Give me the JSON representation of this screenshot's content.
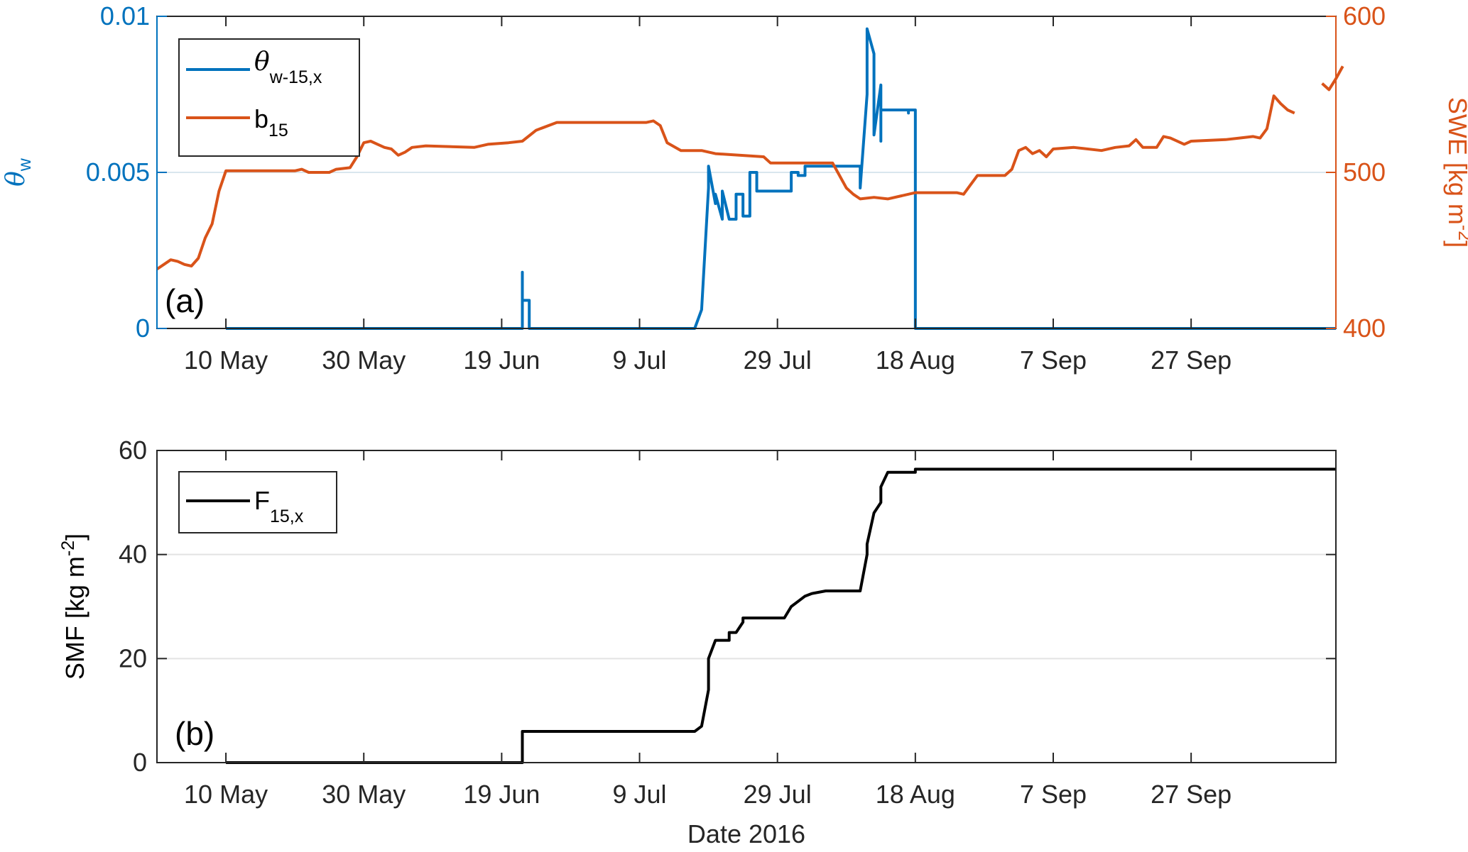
{
  "colors": {
    "theta": "#0072BD",
    "swe": "#D95319",
    "smf": "#000000",
    "grid": "#d9e6ee",
    "axis": "#262626"
  },
  "chart_data": [
    {
      "panel_label": "(a)",
      "type": "line",
      "x_axis": {
        "type": "date",
        "range": [
          "2016-04-30",
          "2016-10-18"
        ],
        "ticks": [
          {
            "date": "2016-05-10",
            "label": "10 May"
          },
          {
            "date": "2016-05-30",
            "label": "30 May"
          },
          {
            "date": "2016-06-19",
            "label": "19 Jun"
          },
          {
            "date": "2016-07-09",
            "label": "9 Jul"
          },
          {
            "date": "2016-07-29",
            "label": "29 Jul"
          },
          {
            "date": "2016-08-18",
            "label": "18 Aug"
          },
          {
            "date": "2016-09-07",
            "label": "7 Sep"
          },
          {
            "date": "2016-09-27",
            "label": "27 Sep"
          }
        ]
      },
      "y_left": {
        "label_main": "θ",
        "label_sub": "w",
        "range": [
          0,
          0.01
        ],
        "ticks": [
          0,
          0.005,
          0.01
        ],
        "tick_labels": [
          "0",
          "0.005",
          "0.01"
        ]
      },
      "y_right": {
        "label_pre": "SWE [kg m",
        "label_sup": "-2",
        "label_post": "]",
        "range": [
          400,
          600
        ],
        "ticks": [
          400,
          500,
          600
        ],
        "tick_labels": [
          "400",
          "500",
          "600"
        ]
      },
      "grid": "horizontal",
      "legend": {
        "placement": "top-left"
      },
      "series": [
        {
          "name_main": "θ",
          "name_sub": "w-15,x",
          "axis": "left",
          "points": [
            [
              "2016-05-10",
              0
            ],
            [
              "2016-06-22",
              0
            ],
            [
              "2016-06-22",
              0.0018
            ],
            [
              "2016-06-22",
              0.0009
            ],
            [
              "2016-06-23",
              0.0009
            ],
            [
              "2016-06-23",
              0
            ],
            [
              "2016-07-17",
              0
            ],
            [
              "2016-07-18",
              0.0006
            ],
            [
              "2016-07-19",
              0.0045
            ],
            [
              "2016-07-19",
              0.0052
            ],
            [
              "2016-07-20",
              0.004
            ],
            [
              "2016-07-20",
              0.0043
            ],
            [
              "2016-07-21",
              0.0035
            ],
            [
              "2016-07-21",
              0.0044
            ],
            [
              "2016-07-22",
              0.0035
            ],
            [
              "2016-07-23",
              0.0035
            ],
            [
              "2016-07-23",
              0.0043
            ],
            [
              "2016-07-24",
              0.0043
            ],
            [
              "2016-07-24",
              0.0036
            ],
            [
              "2016-07-25",
              0.0036
            ],
            [
              "2016-07-25",
              0.005
            ],
            [
              "2016-07-26",
              0.005
            ],
            [
              "2016-07-26",
              0.0044
            ],
            [
              "2016-07-31",
              0.0044
            ],
            [
              "2016-07-31",
              0.005
            ],
            [
              "2016-08-01",
              0.005
            ],
            [
              "2016-08-01",
              0.0049
            ],
            [
              "2016-08-02",
              0.0049
            ],
            [
              "2016-08-02",
              0.0052
            ],
            [
              "2016-08-10",
              0.0052
            ],
            [
              "2016-08-10",
              0.0045
            ],
            [
              "2016-08-11",
              0.0075
            ],
            [
              "2016-08-11",
              0.0096
            ],
            [
              "2016-08-12",
              0.0088
            ],
            [
              "2016-08-12",
              0.0062
            ],
            [
              "2016-08-13",
              0.0078
            ],
            [
              "2016-08-13",
              0.006
            ],
            [
              "2016-08-13",
              0.007
            ],
            [
              "2016-08-17",
              0.007
            ],
            [
              "2016-08-17",
              0.0069
            ],
            [
              "2016-08-17",
              0.007
            ],
            [
              "2016-08-18",
              0.007
            ],
            [
              "2016-08-18",
              0.002
            ],
            [
              "2016-08-18",
              0
            ],
            [
              "2016-10-18",
              0
            ]
          ]
        },
        {
          "name_main": "b",
          "name_sub": "15",
          "axis": "right",
          "segments": [
            [
              [
                "2016-04-30",
                438
              ],
              [
                "2016-05-01",
                441
              ],
              [
                "2016-05-02",
                444
              ],
              [
                "2016-05-03",
                443
              ],
              [
                "2016-05-04",
                441
              ],
              [
                "2016-05-05",
                440
              ],
              [
                "2016-05-06",
                445
              ],
              [
                "2016-05-07",
                458
              ],
              [
                "2016-05-08",
                467
              ],
              [
                "2016-05-09",
                488
              ],
              [
                "2016-05-10",
                501
              ],
              [
                "2016-05-13",
                501
              ],
              [
                "2016-05-20",
                501
              ],
              [
                "2016-05-21",
                502
              ],
              [
                "2016-05-22",
                500
              ],
              [
                "2016-05-25",
                500
              ],
              [
                "2016-05-26",
                502
              ],
              [
                "2016-05-28",
                503
              ],
              [
                "2016-05-29",
                510
              ],
              [
                "2016-05-30",
                519
              ],
              [
                "2016-05-31",
                520
              ],
              [
                "2016-06-01",
                518
              ],
              [
                "2016-06-02",
                516
              ],
              [
                "2016-06-03",
                515
              ],
              [
                "2016-06-04",
                511
              ],
              [
                "2016-06-05",
                513
              ],
              [
                "2016-06-06",
                516
              ],
              [
                "2016-06-08",
                517
              ],
              [
                "2016-06-15",
                516
              ],
              [
                "2016-06-17",
                518
              ],
              [
                "2016-06-20",
                519
              ],
              [
                "2016-06-22",
                520
              ],
              [
                "2016-06-24",
                527
              ],
              [
                "2016-06-27",
                532
              ],
              [
                "2016-07-10",
                532
              ],
              [
                "2016-07-11",
                533
              ],
              [
                "2016-07-12",
                530
              ],
              [
                "2016-07-13",
                519
              ],
              [
                "2016-07-15",
                514
              ],
              [
                "2016-07-18",
                514
              ],
              [
                "2016-07-20",
                512
              ],
              [
                "2016-07-27",
                510
              ],
              [
                "2016-07-28",
                506
              ],
              [
                "2016-08-03",
                506
              ],
              [
                "2016-08-06",
                506
              ],
              [
                "2016-08-07",
                498
              ],
              [
                "2016-08-08",
                490
              ],
              [
                "2016-08-09",
                486
              ],
              [
                "2016-08-10",
                483
              ],
              [
                "2016-08-12",
                484
              ],
              [
                "2016-08-14",
                483
              ],
              [
                "2016-08-16",
                485
              ],
              [
                "2016-08-18",
                487
              ],
              [
                "2016-08-24",
                487
              ],
              [
                "2016-08-25",
                486
              ],
              [
                "2016-08-26",
                492
              ],
              [
                "2016-08-27",
                498
              ],
              [
                "2016-08-31",
                498
              ],
              [
                "2016-09-01",
                502
              ],
              [
                "2016-09-02",
                514
              ],
              [
                "2016-09-03",
                516
              ],
              [
                "2016-09-04",
                512
              ],
              [
                "2016-09-05",
                514
              ],
              [
                "2016-09-06",
                510
              ],
              [
                "2016-09-07",
                515
              ],
              [
                "2016-09-10",
                516
              ],
              [
                "2016-09-14",
                514
              ],
              [
                "2016-09-16",
                516
              ],
              [
                "2016-09-18",
                517
              ],
              [
                "2016-09-19",
                521
              ],
              [
                "2016-09-20",
                516
              ],
              [
                "2016-09-22",
                516
              ],
              [
                "2016-09-23",
                523
              ],
              [
                "2016-09-24",
                522
              ],
              [
                "2016-09-26",
                518
              ],
              [
                "2016-09-27",
                520
              ],
              [
                "2016-10-02",
                521
              ],
              [
                "2016-10-04",
                522
              ],
              [
                "2016-10-06",
                523
              ],
              [
                "2016-10-07",
                522
              ],
              [
                "2016-10-08",
                528
              ],
              [
                "2016-10-09",
                549
              ],
              [
                "2016-10-10",
                544
              ],
              [
                "2016-10-11",
                540
              ],
              [
                "2016-10-12",
                538
              ]
            ],
            [
              [
                "2016-10-16",
                557
              ],
              [
                "2016-10-17",
                553
              ],
              [
                "2016-10-18",
                560
              ],
              [
                "2016-10-19",
                568
              ]
            ]
          ]
        }
      ]
    },
    {
      "panel_label": "(b)",
      "type": "line",
      "x_axis": {
        "type": "date",
        "range": [
          "2016-04-30",
          "2016-10-18"
        ],
        "label": "Date 2016",
        "ticks": [
          {
            "date": "2016-05-10",
            "label": "10 May"
          },
          {
            "date": "2016-05-30",
            "label": "30 May"
          },
          {
            "date": "2016-06-19",
            "label": "19 Jun"
          },
          {
            "date": "2016-07-09",
            "label": "9 Jul"
          },
          {
            "date": "2016-07-29",
            "label": "29 Jul"
          },
          {
            "date": "2016-08-18",
            "label": "18 Aug"
          },
          {
            "date": "2016-09-07",
            "label": "7 Sep"
          },
          {
            "date": "2016-09-27",
            "label": "27 Sep"
          }
        ]
      },
      "y_left": {
        "label_pre": "SMF [kg m",
        "label_sup": "-2",
        "label_post": "]",
        "range": [
          0,
          60
        ],
        "ticks": [
          0,
          20,
          40,
          60
        ],
        "tick_labels": [
          "0",
          "20",
          "40",
          "60"
        ]
      },
      "grid": "horizontal",
      "legend": {
        "placement": "top-left"
      },
      "series": [
        {
          "name_main": "F",
          "name_sub": "15,x",
          "points": [
            [
              "2016-05-10",
              0
            ],
            [
              "2016-06-22",
              0
            ],
            [
              "2016-06-22",
              6
            ],
            [
              "2016-07-17",
              6
            ],
            [
              "2016-07-18",
              7
            ],
            [
              "2016-07-19",
              14
            ],
            [
              "2016-07-19",
              20
            ],
            [
              "2016-07-20",
              23.5
            ],
            [
              "2016-07-22",
              23.5
            ],
            [
              "2016-07-22",
              25
            ],
            [
              "2016-07-23",
              25
            ],
            [
              "2016-07-24",
              27
            ],
            [
              "2016-07-24",
              27.8
            ],
            [
              "2016-07-30",
              27.8
            ],
            [
              "2016-07-31",
              30
            ],
            [
              "2016-08-01",
              31
            ],
            [
              "2016-08-02",
              32
            ],
            [
              "2016-08-03",
              32.5
            ],
            [
              "2016-08-05",
              33
            ],
            [
              "2016-08-10",
              33
            ],
            [
              "2016-08-11",
              40
            ],
            [
              "2016-08-11",
              42
            ],
            [
              "2016-08-12",
              48
            ],
            [
              "2016-08-13",
              50
            ],
            [
              "2016-08-13",
              53
            ],
            [
              "2016-08-14",
              55.8
            ],
            [
              "2016-08-18",
              55.8
            ],
            [
              "2016-08-18",
              56.4
            ],
            [
              "2016-10-18",
              56.4
            ]
          ]
        }
      ]
    }
  ]
}
